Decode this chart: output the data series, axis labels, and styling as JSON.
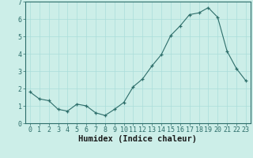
{
  "x": [
    0,
    1,
    2,
    3,
    4,
    5,
    6,
    7,
    8,
    9,
    10,
    11,
    12,
    13,
    14,
    15,
    16,
    17,
    18,
    19,
    20,
    21,
    22,
    23
  ],
  "y": [
    1.8,
    1.4,
    1.3,
    0.8,
    0.7,
    1.1,
    1.0,
    0.6,
    0.45,
    0.8,
    1.2,
    2.1,
    2.55,
    3.3,
    3.95,
    5.05,
    5.6,
    6.25,
    6.35,
    6.65,
    6.1,
    4.15,
    3.15,
    2.45
  ],
  "xlabel": "Humidex (Indice chaleur)",
  "ylim": [
    0,
    7
  ],
  "xlim": [
    -0.5,
    23.5
  ],
  "bg_color": "#cceee8",
  "line_color": "#2d6e6a",
  "marker_color": "#2d6e6a",
  "grid_color": "#aaddda",
  "axis_color": "#2d6e6a",
  "xlabel_fontsize": 7.5,
  "tick_fontsize": 6.0,
  "yticks": [
    0,
    1,
    2,
    3,
    4,
    5,
    6,
    7
  ],
  "xtick_labels": [
    "0",
    "1",
    "2",
    "3",
    "4",
    "5",
    "6",
    "7",
    "8",
    "9",
    "10",
    "11",
    "12",
    "13",
    "14",
    "15",
    "16",
    "17",
    "18",
    "19",
    "20",
    "21",
    "22",
    "23"
  ]
}
